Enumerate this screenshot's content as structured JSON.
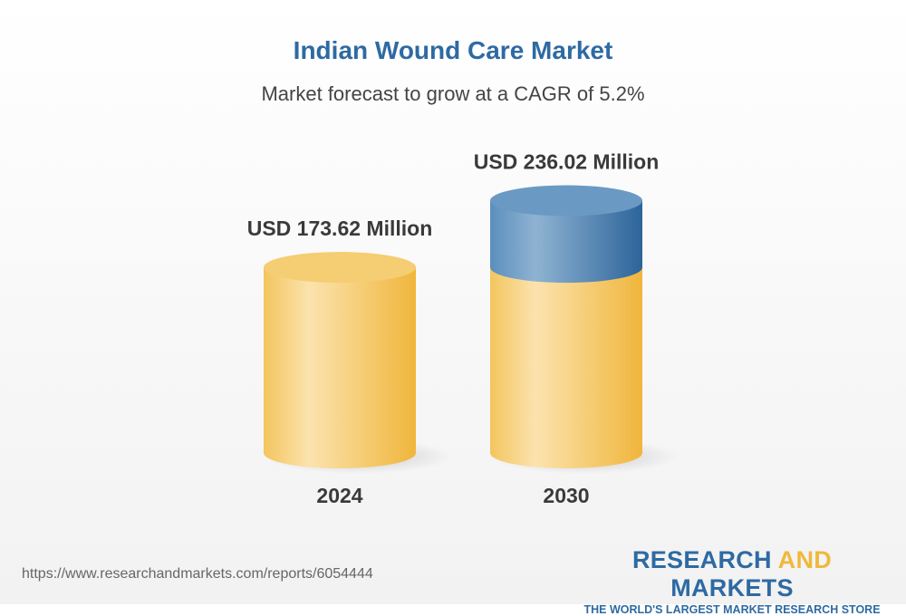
{
  "title": "Indian Wound Care Market",
  "subtitle": "Market forecast to grow at a CAGR of 5.2%",
  "chart_data": {
    "type": "bar",
    "categories": [
      "2024",
      "2030"
    ],
    "values": [
      173.62,
      236.02
    ],
    "data_labels": [
      "USD 173.62 Million",
      "USD 236.02 Million"
    ],
    "title": "Indian Wound Care Market",
    "subtitle": "Market forecast to grow at a CAGR of 5.2%",
    "colors": {
      "base": "#f2c04e",
      "growth": "#2e6aa3"
    }
  },
  "footer": {
    "url": "https://www.researchandmarkets.com/reports/6054444"
  },
  "logo": {
    "part1": "RESEARCH ",
    "part2": "AND",
    "part3": " MARKETS",
    "tagline": "THE WORLD'S LARGEST MARKET RESEARCH STORE"
  }
}
